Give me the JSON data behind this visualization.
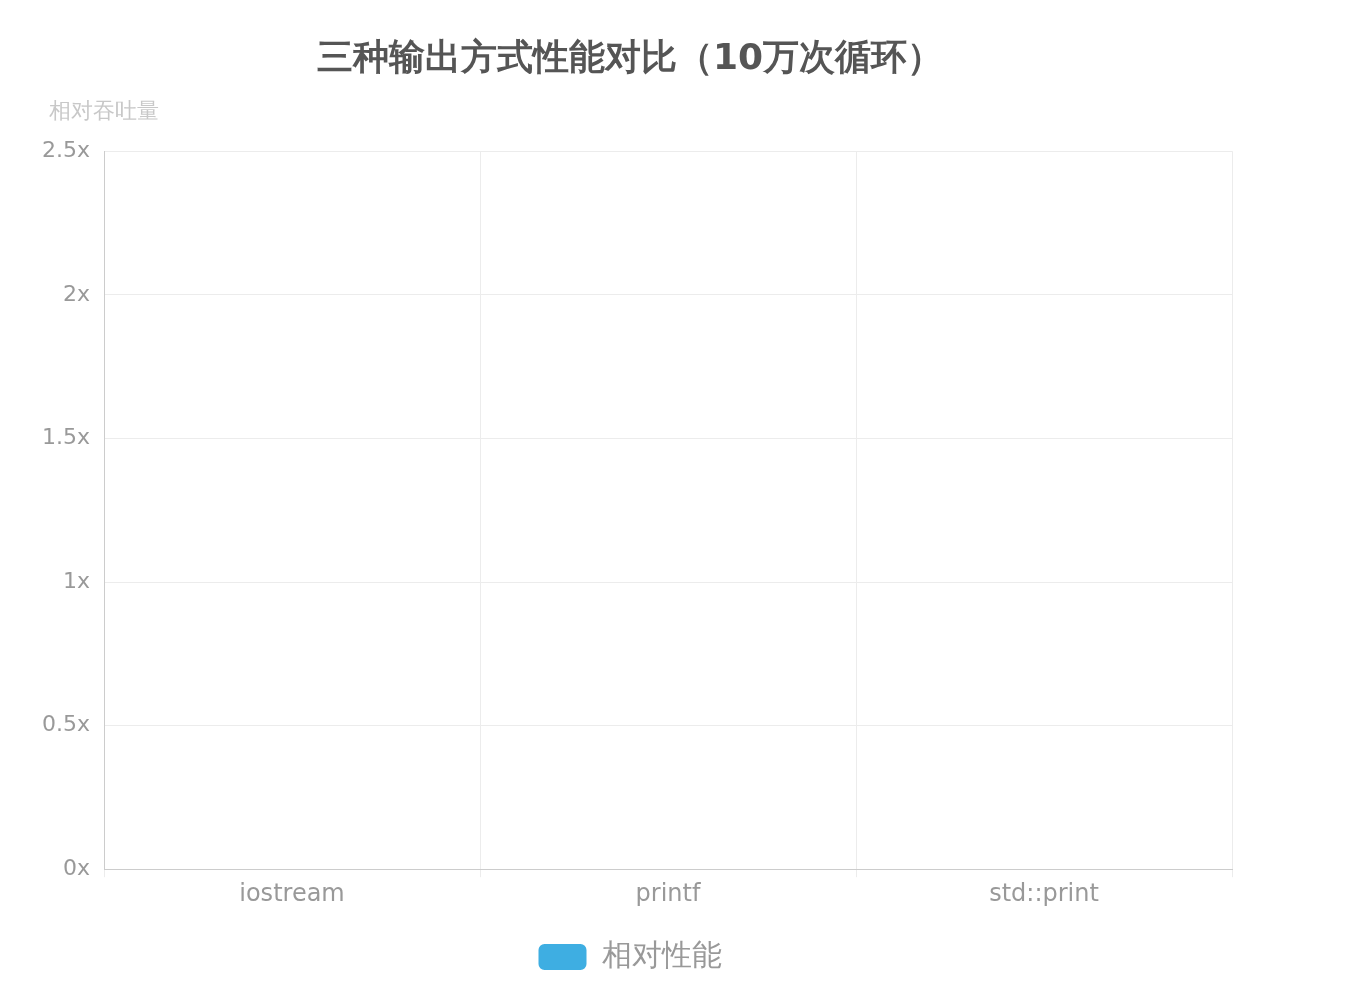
{
  "chart_data": {
    "type": "bar",
    "title": "三种输出方式性能对比（10万次循环）",
    "ylabel": "相对吞吐量",
    "categories": [
      "iostream",
      "printf",
      "std::print"
    ],
    "series": [
      {
        "name": "相对性能",
        "color": "#3eaee2",
        "values": [
          0,
          0,
          0
        ]
      }
    ],
    "ylim": [
      0,
      2.5
    ],
    "yticks": [
      {
        "value": 0,
        "label": "0x"
      },
      {
        "value": 0.5,
        "label": "0.5x"
      },
      {
        "value": 1,
        "label": "1x"
      },
      {
        "value": 1.5,
        "label": "1.5x"
      },
      {
        "value": 2,
        "label": "2x"
      },
      {
        "value": 2.5,
        "label": "2.5x"
      }
    ],
    "grid": true,
    "legend": "bottom"
  }
}
